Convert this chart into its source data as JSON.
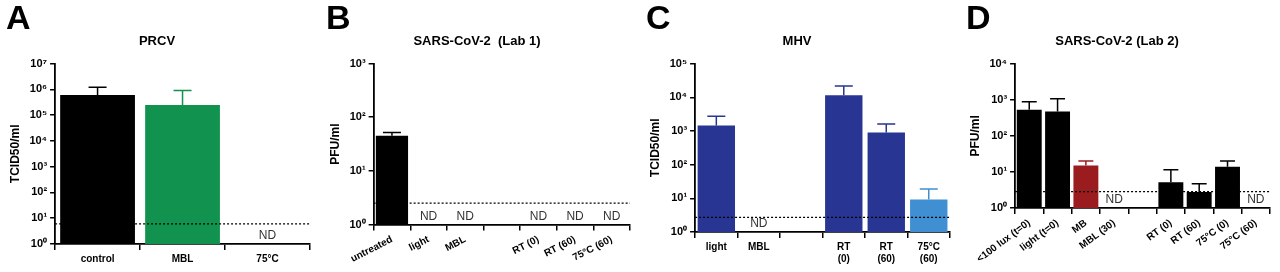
{
  "chart_data": [
    {
      "type": "bar",
      "title": "PRCV",
      "ylabel": "TCID50/ml",
      "annotations": [
        "A"
      ],
      "log": true,
      "grid": false,
      "legend": false,
      "categories": [
        "control",
        "MBL",
        "75°C"
      ],
      "values": [
        600000,
        250000,
        null
      ],
      "errors": [
        [
          600000,
          1200000
        ],
        [
          250000,
          900000
        ],
        null
      ],
      "value_labels": [
        null,
        null,
        "ND"
      ],
      "colors": [
        "#000000",
        "#11934f",
        "#000000"
      ],
      "ylim": [
        1,
        10000000
      ],
      "yticks": [
        {
          "value": 1,
          "label": "10⁰"
        },
        {
          "value": 10,
          "label": "10¹"
        },
        {
          "value": 100,
          "label": "10²"
        },
        {
          "value": 1000,
          "label": "10³"
        },
        {
          "value": 10000,
          "label": "10⁴"
        },
        {
          "value": 100000,
          "label": "10⁵"
        },
        {
          "value": 1000000,
          "label": "10⁶"
        },
        {
          "value": 10000000,
          "label": "10⁷"
        }
      ],
      "ref_lines": [
        {
          "axis": "y",
          "value": 6,
          "line_style": "dotted",
          "color": "#000000"
        }
      ]
    },
    {
      "type": "bar",
      "title": "SARS-CoV-2  (Lab 1)",
      "ylabel": "PFU/ml",
      "annotations": [
        "B"
      ],
      "log": true,
      "grid": false,
      "legend": false,
      "categories": [
        "untreated",
        "light",
        "MBL",
        null,
        "RT (0)",
        "RT (60)",
        "75°C (60)"
      ],
      "values": [
        45,
        null,
        null,
        null,
        null,
        null,
        null
      ],
      "errors": [
        [
          45,
          52
        ],
        null,
        null,
        null,
        null,
        null,
        null
      ],
      "value_labels": [
        null,
        "ND",
        "ND",
        null,
        "ND",
        "ND",
        "ND"
      ],
      "colors": [
        "#000000",
        "#000000",
        "#000000",
        "#000000",
        "#000000",
        "#000000",
        "#000000"
      ],
      "ylim": [
        1,
        1000
      ],
      "yticks": [
        {
          "value": 1,
          "label": "10⁰"
        },
        {
          "value": 10,
          "label": "10¹"
        },
        {
          "value": 100,
          "label": "10²"
        },
        {
          "value": 1000,
          "label": "10³"
        }
      ],
      "ref_lines": [
        {
          "axis": "y",
          "value": 2.5,
          "line_style": "dotted",
          "color": "#000000"
        }
      ]
    },
    {
      "type": "bar",
      "title": "MHV",
      "ylabel": "TCID50/ml",
      "annotations": [
        "C"
      ],
      "log": true,
      "grid": false,
      "legend": false,
      "categories": [
        "light",
        "MBL",
        null,
        "RT\n(0)",
        "RT\n(60)",
        "75°C\n(60)"
      ],
      "values": [
        1450,
        null,
        null,
        11500,
        900,
        9.3
      ],
      "errors": [
        [
          1450,
          2750
        ],
        null,
        null,
        [
          11500,
          21500
        ],
        [
          900,
          1600
        ],
        [
          9.3,
          19
        ]
      ],
      "value_labels": [
        null,
        "ND",
        null,
        null,
        null,
        null
      ],
      "colors": [
        "#283593",
        "#283593",
        "#283593",
        "#283593",
        "#283593",
        "#3f8fd2"
      ],
      "ylim": [
        1,
        100000
      ],
      "yticks": [
        {
          "value": 1,
          "label": "10⁰"
        },
        {
          "value": 10,
          "label": "10¹"
        },
        {
          "value": 100,
          "label": "10²"
        },
        {
          "value": 1000,
          "label": "10³"
        },
        {
          "value": 10000,
          "label": "10⁴"
        },
        {
          "value": 100000,
          "label": "10⁵"
        }
      ],
      "ref_lines": [
        {
          "axis": "y",
          "value": 2.7,
          "line_style": "dotted",
          "color": "#000000"
        }
      ]
    },
    {
      "type": "bar",
      "title": "SARS-CoV-2 (Lab 2)",
      "ylabel": "PFU/ml",
      "annotations": [
        "D"
      ],
      "log": true,
      "grid": false,
      "legend": false,
      "categories": [
        "<100 lux (t=0)",
        "light (t=0)",
        "MB",
        "MBL (30)",
        null,
        "RT (0)",
        "RT (60)",
        "75°C (0)",
        "75°C (60)"
      ],
      "values": [
        530,
        470,
        15,
        null,
        null,
        5.2,
        2.8,
        14,
        null
      ],
      "errors": [
        [
          530,
          880
        ],
        [
          470,
          1070
        ],
        [
          15,
          20
        ],
        null,
        null,
        [
          5.2,
          11.5
        ],
        [
          2.8,
          4.7
        ],
        [
          14,
          20
        ],
        null
      ],
      "value_labels": [
        null,
        null,
        null,
        "ND",
        null,
        null,
        null,
        null,
        "ND"
      ],
      "colors": [
        "#000000",
        "#000000",
        "#9b1c1f",
        "#000000",
        "#000000",
        "#000000",
        "#000000",
        "#000000",
        "#000000"
      ],
      "ylim": [
        1,
        10000
      ],
      "yticks": [
        {
          "value": 1,
          "label": "10⁰"
        },
        {
          "value": 10,
          "label": "10¹"
        },
        {
          "value": 100,
          "label": "10²"
        },
        {
          "value": 1000,
          "label": "10³"
        },
        {
          "value": 10000,
          "label": "10⁴"
        }
      ],
      "ref_lines": [
        {
          "axis": "y",
          "value": 2.85,
          "line_style": "dotted",
          "color": "#000000"
        }
      ]
    }
  ]
}
